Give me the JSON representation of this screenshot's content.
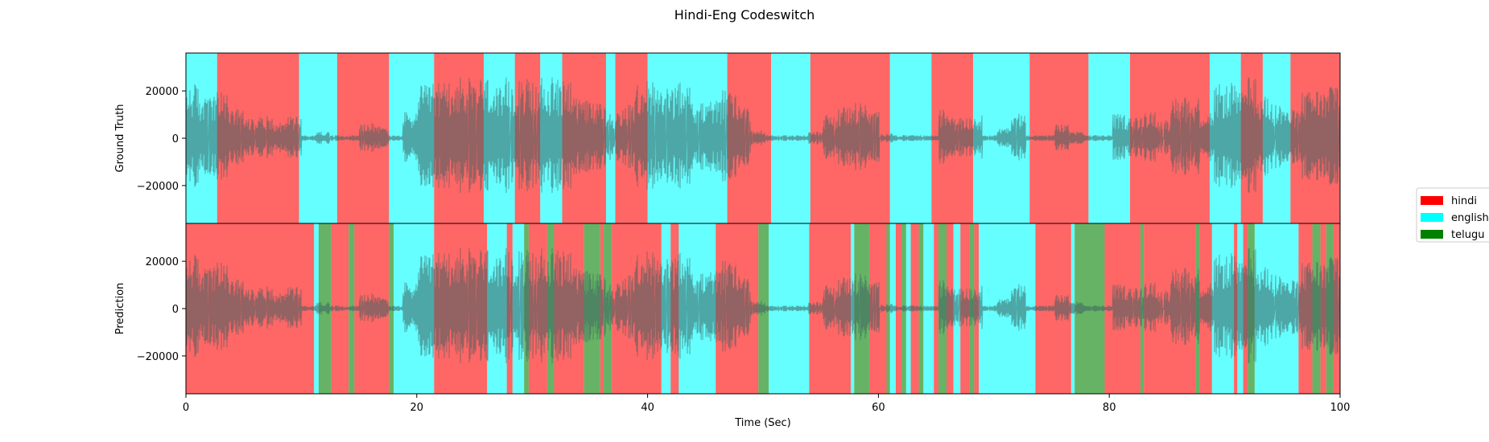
{
  "chart_data": {
    "type": "area",
    "title": "Hindi-Eng Codeswitch",
    "xlabel": "Time (Sec)",
    "xlim": [
      0,
      100
    ],
    "ylim": [
      -36000,
      36000
    ],
    "x_ticks": [
      0,
      20,
      40,
      60,
      80,
      100
    ],
    "y_ticks": [
      20000,
      0,
      -20000
    ],
    "y_tick_labels": [
      "20000",
      "0",
      "−20000"
    ],
    "legend": {
      "placement": "right",
      "entries": [
        {
          "label": "hindi",
          "color": "#ff0000"
        },
        {
          "label": "english",
          "color": "#00ffff"
        },
        {
          "label": "telugu",
          "color": "#008000"
        }
      ]
    },
    "panels": [
      {
        "ylabel": "Ground Truth",
        "segments": [
          {
            "start": 0.0,
            "end": 2.7,
            "label": "english"
          },
          {
            "start": 2.7,
            "end": 9.8,
            "label": "hindi"
          },
          {
            "start": 9.8,
            "end": 13.1,
            "label": "english"
          },
          {
            "start": 13.1,
            "end": 17.6,
            "label": "hindi"
          },
          {
            "start": 17.6,
            "end": 21.5,
            "label": "english"
          },
          {
            "start": 21.5,
            "end": 25.8,
            "label": "hindi"
          },
          {
            "start": 25.8,
            "end": 28.5,
            "label": "english"
          },
          {
            "start": 28.5,
            "end": 30.7,
            "label": "hindi"
          },
          {
            "start": 30.7,
            "end": 32.6,
            "label": "english"
          },
          {
            "start": 32.6,
            "end": 36.4,
            "label": "hindi"
          },
          {
            "start": 36.4,
            "end": 37.2,
            "label": "english"
          },
          {
            "start": 37.2,
            "end": 40.0,
            "label": "hindi"
          },
          {
            "start": 40.0,
            "end": 46.9,
            "label": "english"
          },
          {
            "start": 46.9,
            "end": 50.7,
            "label": "hindi"
          },
          {
            "start": 50.7,
            "end": 54.1,
            "label": "english"
          },
          {
            "start": 54.1,
            "end": 61.0,
            "label": "hindi"
          },
          {
            "start": 61.0,
            "end": 64.6,
            "label": "english"
          },
          {
            "start": 64.6,
            "end": 68.2,
            "label": "hindi"
          },
          {
            "start": 68.2,
            "end": 73.1,
            "label": "english"
          },
          {
            "start": 73.1,
            "end": 78.2,
            "label": "hindi"
          },
          {
            "start": 78.2,
            "end": 81.8,
            "label": "english"
          },
          {
            "start": 81.8,
            "end": 88.7,
            "label": "hindi"
          },
          {
            "start": 88.7,
            "end": 91.4,
            "label": "english"
          },
          {
            "start": 91.4,
            "end": 93.3,
            "label": "hindi"
          },
          {
            "start": 93.3,
            "end": 95.7,
            "label": "english"
          },
          {
            "start": 95.7,
            "end": 100.0,
            "label": "hindi"
          }
        ]
      },
      {
        "ylabel": "Prediction",
        "segments": [
          {
            "start": 0.0,
            "end": 11.1,
            "label": "hindi"
          },
          {
            "start": 11.1,
            "end": 11.5,
            "label": "english"
          },
          {
            "start": 11.5,
            "end": 12.6,
            "label": "telugu"
          },
          {
            "start": 12.6,
            "end": 14.1,
            "label": "hindi"
          },
          {
            "start": 14.1,
            "end": 14.6,
            "label": "telugu"
          },
          {
            "start": 14.6,
            "end": 17.6,
            "label": "hindi"
          },
          {
            "start": 17.6,
            "end": 18.0,
            "label": "telugu"
          },
          {
            "start": 18.0,
            "end": 21.5,
            "label": "english"
          },
          {
            "start": 21.5,
            "end": 26.1,
            "label": "hindi"
          },
          {
            "start": 26.1,
            "end": 27.8,
            "label": "english"
          },
          {
            "start": 27.8,
            "end": 28.3,
            "label": "hindi"
          },
          {
            "start": 28.3,
            "end": 29.3,
            "label": "english"
          },
          {
            "start": 29.3,
            "end": 29.7,
            "label": "telugu"
          },
          {
            "start": 29.7,
            "end": 31.3,
            "label": "hindi"
          },
          {
            "start": 31.3,
            "end": 31.9,
            "label": "telugu"
          },
          {
            "start": 31.9,
            "end": 34.5,
            "label": "hindi"
          },
          {
            "start": 34.5,
            "end": 35.9,
            "label": "telugu"
          },
          {
            "start": 35.9,
            "end": 36.2,
            "label": "hindi"
          },
          {
            "start": 36.2,
            "end": 36.9,
            "label": "telugu"
          },
          {
            "start": 36.9,
            "end": 41.2,
            "label": "hindi"
          },
          {
            "start": 41.2,
            "end": 42.0,
            "label": "english"
          },
          {
            "start": 42.0,
            "end": 42.7,
            "label": "hindi"
          },
          {
            "start": 42.7,
            "end": 45.9,
            "label": "english"
          },
          {
            "start": 45.9,
            "end": 49.6,
            "label": "hindi"
          },
          {
            "start": 49.6,
            "end": 50.5,
            "label": "telugu"
          },
          {
            "start": 50.5,
            "end": 54.0,
            "label": "english"
          },
          {
            "start": 54.0,
            "end": 57.6,
            "label": "hindi"
          },
          {
            "start": 57.6,
            "end": 57.9,
            "label": "english"
          },
          {
            "start": 57.9,
            "end": 59.2,
            "label": "telugu"
          },
          {
            "start": 59.2,
            "end": 60.7,
            "label": "hindi"
          },
          {
            "start": 60.7,
            "end": 61.0,
            "label": "telugu"
          },
          {
            "start": 61.0,
            "end": 61.5,
            "label": "english"
          },
          {
            "start": 61.5,
            "end": 62.0,
            "label": "hindi"
          },
          {
            "start": 62.0,
            "end": 62.4,
            "label": "telugu"
          },
          {
            "start": 62.4,
            "end": 62.8,
            "label": "english"
          },
          {
            "start": 62.8,
            "end": 63.5,
            "label": "hindi"
          },
          {
            "start": 63.5,
            "end": 63.9,
            "label": "telugu"
          },
          {
            "start": 63.9,
            "end": 64.8,
            "label": "english"
          },
          {
            "start": 64.8,
            "end": 65.2,
            "label": "hindi"
          },
          {
            "start": 65.2,
            "end": 65.9,
            "label": "telugu"
          },
          {
            "start": 65.9,
            "end": 66.5,
            "label": "hindi"
          },
          {
            "start": 66.5,
            "end": 67.1,
            "label": "english"
          },
          {
            "start": 67.1,
            "end": 67.9,
            "label": "hindi"
          },
          {
            "start": 67.9,
            "end": 68.3,
            "label": "telugu"
          },
          {
            "start": 68.3,
            "end": 68.7,
            "label": "hindi"
          },
          {
            "start": 68.7,
            "end": 73.6,
            "label": "english"
          },
          {
            "start": 73.6,
            "end": 76.7,
            "label": "hindi"
          },
          {
            "start": 76.7,
            "end": 77.0,
            "label": "english"
          },
          {
            "start": 77.0,
            "end": 79.6,
            "label": "telugu"
          },
          {
            "start": 79.6,
            "end": 82.7,
            "label": "hindi"
          },
          {
            "start": 82.7,
            "end": 83.0,
            "label": "telugu"
          },
          {
            "start": 83.0,
            "end": 87.5,
            "label": "hindi"
          },
          {
            "start": 87.5,
            "end": 87.8,
            "label": "telugu"
          },
          {
            "start": 87.8,
            "end": 88.9,
            "label": "hindi"
          },
          {
            "start": 88.9,
            "end": 90.8,
            "label": "english"
          },
          {
            "start": 90.8,
            "end": 91.1,
            "label": "hindi"
          },
          {
            "start": 91.1,
            "end": 91.6,
            "label": "english"
          },
          {
            "start": 91.6,
            "end": 92.0,
            "label": "hindi"
          },
          {
            "start": 92.0,
            "end": 92.6,
            "label": "telugu"
          },
          {
            "start": 92.6,
            "end": 96.4,
            "label": "english"
          },
          {
            "start": 96.4,
            "end": 97.6,
            "label": "hindi"
          },
          {
            "start": 97.6,
            "end": 98.3,
            "label": "telugu"
          },
          {
            "start": 98.3,
            "end": 98.8,
            "label": "hindi"
          },
          {
            "start": 98.8,
            "end": 99.4,
            "label": "telugu"
          },
          {
            "start": 99.4,
            "end": 100.0,
            "label": "hindi"
          }
        ]
      }
    ]
  }
}
